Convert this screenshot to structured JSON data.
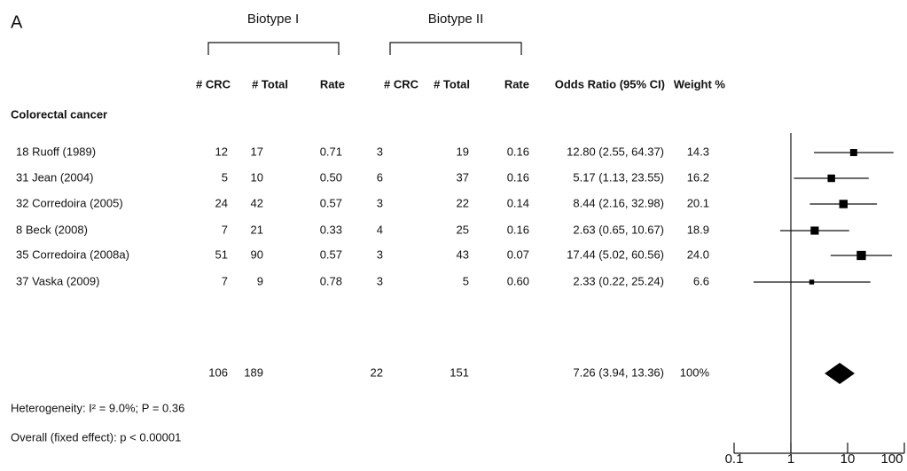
{
  "panel_label": "A",
  "group_headers": [
    "Biotype I",
    "Biotype II"
  ],
  "columns": [
    "# CRC",
    "# Total",
    "Rate",
    "# CRC",
    "# Total",
    "Rate",
    "Odds Ratio (95% CI)",
    "Weight %"
  ],
  "section": "Colorectal cancer",
  "rows": [
    {
      "study": "18 Ruoff (1989)",
      "cells": [
        "12",
        "17",
        "0.71",
        "3",
        "19",
        "0.16",
        "12.80 (2.55, 64.37)",
        "14.3"
      ]
    },
    {
      "study": "31 Jean (2004)",
      "cells": [
        "5",
        "10",
        "0.50",
        "6",
        "37",
        "0.16",
        "5.17 (1.13, 23.55)",
        "16.2"
      ]
    },
    {
      "study": "32 Corredoira (2005)",
      "cells": [
        "24",
        "42",
        "0.57",
        "3",
        "22",
        "0.14",
        "8.44 (2.16, 32.98)",
        "20.1"
      ]
    },
    {
      "study": "8 Beck (2008)",
      "cells": [
        "7",
        "21",
        "0.33",
        "4",
        "25",
        "0.16",
        "2.63 (0.65, 10.67)",
        "18.9"
      ]
    },
    {
      "study": "35 Corredoira (2008a)",
      "cells": [
        "51",
        "90",
        "0.57",
        "3",
        "43",
        "0.07",
        "17.44 (5.02, 60.56)",
        "24.0"
      ]
    },
    {
      "study": "37 Vaska (2009)",
      "cells": [
        "7",
        "9",
        "0.78",
        "3",
        "5",
        "0.60",
        "2.33 (0.22, 25.24)",
        "6.6"
      ]
    }
  ],
  "total": [
    "106",
    "189",
    null,
    "22",
    "151",
    null,
    "7.26 (3.94, 13.36)",
    "100%"
  ],
  "notes": [
    "Heterogeneity: I² = 9.0%; P = 0.36",
    "Overall (fixed effect): p < 0.00001"
  ],
  "chart_data": {
    "type": "forest",
    "xscale": "log",
    "color": "#000000",
    "xlim": [
      0.1,
      100
    ],
    "xticks": [
      0.1,
      1,
      10,
      100
    ],
    "reference": 1,
    "estimates": [
      12.8,
      5.17,
      8.44,
      2.63,
      17.44,
      2.33
    ],
    "lower": [
      2.55,
      1.13,
      2.16,
      0.65,
      5.02,
      0.22
    ],
    "upper": [
      64.37,
      23.55,
      32.98,
      10.67,
      60.56,
      25.24
    ],
    "weights": [
      14.3,
      16.2,
      20.1,
      18.9,
      24.0,
      6.6
    ],
    "pooled": {
      "estimate": 7.26,
      "lower": 3.94,
      "upper": 13.36
    }
  }
}
